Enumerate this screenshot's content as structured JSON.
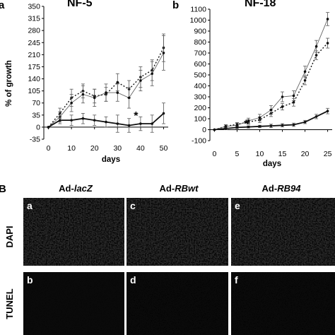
{
  "panel_A": {
    "charts": [
      {
        "letter": "a",
        "title": "NF-5",
        "ylabel": "% of growth",
        "xlabel": "days",
        "yticks": [
          "-35",
          "0",
          "35",
          "70",
          "105",
          "140",
          "175",
          "210",
          "245",
          "280",
          "315",
          "350"
        ],
        "xticks": [
          "0",
          "10",
          "20",
          "30",
          "40",
          "50"
        ]
      },
      {
        "letter": "b",
        "title": "NF-18",
        "ylabel": "",
        "xlabel": "days",
        "yticks": [
          "-100",
          "0",
          "100",
          "200",
          "300",
          "400",
          "500",
          "600",
          "700",
          "800",
          "900",
          "1000",
          "1100"
        ],
        "xticks": [
          "0",
          "5",
          "10",
          "15",
          "20",
          "25"
        ]
      }
    ]
  },
  "panel_B": {
    "label": "B",
    "column_headers": [
      {
        "prefix": "Ad-",
        "name": "lacZ"
      },
      {
        "prefix": "Ad-",
        "name": "RBwt"
      },
      {
        "prefix": "Ad-",
        "name": "RB94"
      }
    ],
    "row_labels": [
      "DAPI",
      "TUNEL"
    ],
    "tile_letters": [
      "a",
      "c",
      "e",
      "b",
      "d",
      "f"
    ]
  },
  "chart_data": [
    {
      "type": "line",
      "title": "NF-5",
      "xlabel": "days",
      "ylabel": "% of growth",
      "xlim": [
        -2,
        52
      ],
      "ylim": [
        -35,
        350
      ],
      "annotations": [
        {
          "text": "*",
          "x": 38,
          "y": 22
        }
      ],
      "series": [
        {
          "style": "dotted",
          "x": [
            0,
            5,
            10,
            15,
            20,
            25,
            30,
            35,
            40,
            45,
            50
          ],
          "y": [
            0,
            40,
            85,
            105,
            90,
            95,
            130,
            110,
            145,
            165,
            230
          ],
          "err": [
            0,
            15,
            25,
            20,
            20,
            20,
            25,
            25,
            30,
            30,
            40
          ]
        },
        {
          "style": "solid-thin",
          "x": [
            0,
            5,
            10,
            15,
            20,
            25,
            30,
            35,
            40,
            45,
            50
          ],
          "y": [
            0,
            30,
            70,
            95,
            85,
            100,
            100,
            85,
            135,
            155,
            215
          ],
          "err": [
            0,
            15,
            25,
            25,
            25,
            25,
            25,
            30,
            30,
            35,
            50
          ]
        },
        {
          "style": "solid-thick",
          "x": [
            0,
            5,
            10,
            15,
            20,
            25,
            30,
            35,
            40,
            45,
            50
          ],
          "y": [
            0,
            20,
            20,
            25,
            20,
            15,
            10,
            5,
            10,
            10,
            40
          ],
          "err": [
            0,
            10,
            15,
            15,
            15,
            15,
            25,
            20,
            20,
            25,
            30
          ]
        }
      ]
    },
    {
      "type": "line",
      "title": "NF-18",
      "xlabel": "days",
      "ylabel": "",
      "xlim": [
        -1,
        26
      ],
      "ylim": [
        -100,
        1100
      ],
      "annotations": [
        {
          "text": "*",
          "x": 7,
          "y": 20
        }
      ],
      "series": [
        {
          "style": "dotted",
          "x": [
            0,
            2.5,
            5,
            7.5,
            10,
            12.5,
            15,
            17.5,
            20,
            22.5,
            25
          ],
          "y": [
            0,
            30,
            50,
            70,
            90,
            150,
            210,
            250,
            450,
            680,
            790
          ],
          "err": [
            0,
            15,
            15,
            20,
            25,
            30,
            30,
            35,
            40,
            40,
            45
          ]
        },
        {
          "style": "solid-thin",
          "x": [
            0,
            2.5,
            5,
            7.5,
            10,
            12.5,
            15,
            17.5,
            20,
            22.5,
            25
          ],
          "y": [
            0,
            30,
            40,
            80,
            110,
            180,
            300,
            310,
            530,
            760,
            1010
          ],
          "err": [
            0,
            15,
            20,
            25,
            30,
            40,
            45,
            45,
            50,
            55,
            60
          ]
        },
        {
          "style": "solid-thick",
          "x": [
            0,
            2.5,
            5,
            7.5,
            10,
            12.5,
            15,
            17.5,
            20,
            22.5,
            25
          ],
          "y": [
            0,
            10,
            20,
            25,
            30,
            35,
            40,
            45,
            70,
            120,
            170
          ],
          "err": [
            0,
            10,
            10,
            10,
            10,
            15,
            15,
            15,
            15,
            20,
            25
          ]
        }
      ]
    }
  ]
}
